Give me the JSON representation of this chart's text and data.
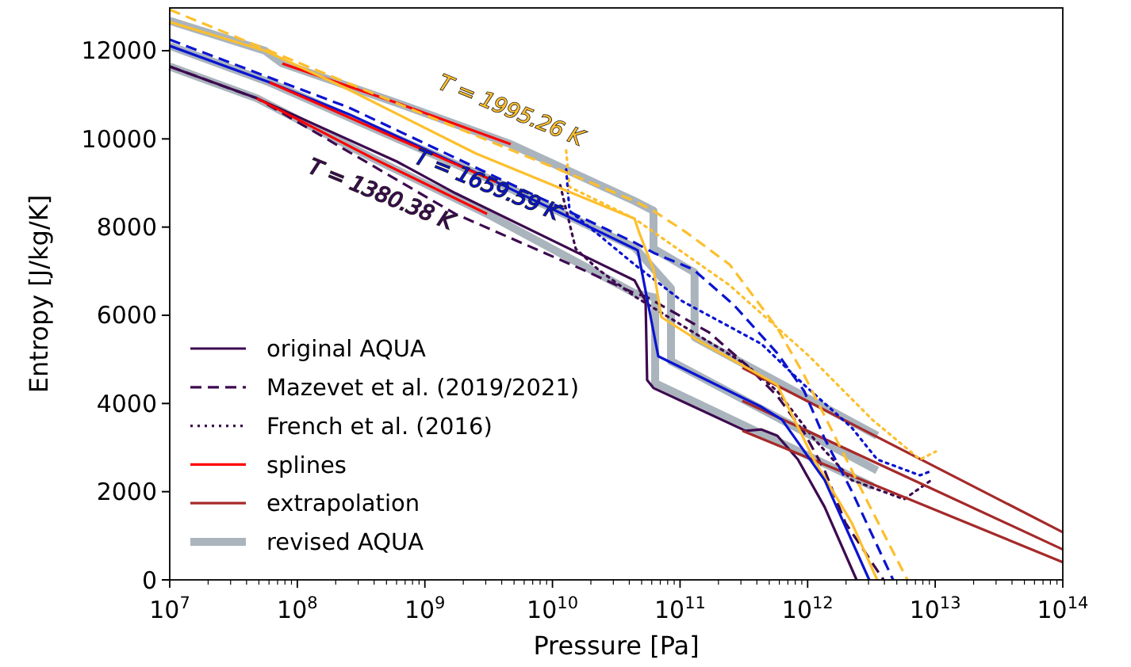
{
  "chart_data": {
    "type": "line",
    "xlabel": "Pressure [Pa]",
    "ylabel": "Entropy [J/kg/K]",
    "log": "x",
    "grid": false,
    "legend": "bottom left",
    "xlim": [
      10000000.0,
      100000000000000.0
    ],
    "ylim": [
      0,
      12970
    ],
    "xticks": [
      {
        "value": 10000000.0,
        "label": "10$^{7}$"
      },
      {
        "value": 100000000.0,
        "label": "10$^{8}$"
      },
      {
        "value": 1000000000.0,
        "label": "10$^{9}$"
      },
      {
        "value": 10000000000.0,
        "label": "10$^{10}$"
      },
      {
        "value": 100000000000.0,
        "label": "10$^{11}$"
      },
      {
        "value": 1000000000000.0,
        "label": "10$^{12}$"
      },
      {
        "value": 10000000000000.0,
        "label": "10$^{13}$"
      },
      {
        "value": 100000000000000.0,
        "label": "10$^{14}$"
      },
      {
        "value": 20000000.0,
        "label": null
      },
      {
        "value": 30000000.0,
        "label": null
      },
      {
        "value": 40000000.0,
        "label": null
      },
      {
        "value": 50000000.0,
        "label": null
      },
      {
        "value": 60000000.0,
        "label": null
      },
      {
        "value": 70000000.0,
        "label": null
      },
      {
        "value": 80000000.0,
        "label": null
      },
      {
        "value": 90000000.0,
        "label": null
      },
      {
        "value": 200000000.0,
        "label": null
      },
      {
        "value": 300000000.0,
        "label": null
      },
      {
        "value": 400000000.0,
        "label": null
      },
      {
        "value": 500000000.0,
        "label": null
      },
      {
        "value": 600000000.0,
        "label": null
      },
      {
        "value": 700000000.0,
        "label": null
      },
      {
        "value": 800000000.0,
        "label": null
      },
      {
        "value": 900000000.0,
        "label": null
      },
      {
        "value": 2000000000.0,
        "label": null
      },
      {
        "value": 3000000000.0,
        "label": null
      },
      {
        "value": 4000000000.0,
        "label": null
      },
      {
        "value": 5000000000.0,
        "label": null
      },
      {
        "value": 6000000000.0,
        "label": null
      },
      {
        "value": 7000000000.0,
        "label": null
      },
      {
        "value": 8000000000.0,
        "label": null
      },
      {
        "value": 9000000000.0,
        "label": null
      },
      {
        "value": 20000000000.0,
        "label": null
      },
      {
        "value": 30000000000.0,
        "label": null
      },
      {
        "value": 40000000000.0,
        "label": null
      },
      {
        "value": 50000000000.0,
        "label": null
      },
      {
        "value": 60000000000.0,
        "label": null
      },
      {
        "value": 70000000000.0,
        "label": null
      },
      {
        "value": 80000000000.0,
        "label": null
      },
      {
        "value": 90000000000.0,
        "label": null
      },
      {
        "value": 200000000000.0,
        "label": null
      },
      {
        "value": 300000000000.0,
        "label": null
      },
      {
        "value": 400000000000.0,
        "label": null
      },
      {
        "value": 500000000000.0,
        "label": null
      },
      {
        "value": 600000000000.0,
        "label": null
      },
      {
        "value": 700000000000.0,
        "label": null
      },
      {
        "value": 800000000000.0,
        "label": null
      },
      {
        "value": 900000000000.0,
        "label": null
      },
      {
        "value": 2000000000000.0,
        "label": null
      },
      {
        "value": 3000000000000.0,
        "label": null
      },
      {
        "value": 4000000000000.0,
        "label": null
      },
      {
        "value": 5000000000000.0,
        "label": null
      },
      {
        "value": 6000000000000.0,
        "label": null
      },
      {
        "value": 7000000000000.0,
        "label": null
      },
      {
        "value": 8000000000000.0,
        "label": null
      },
      {
        "value": 9000000000000.0,
        "label": null
      },
      {
        "value": 20000000000000.0,
        "label": null
      },
      {
        "value": 30000000000000.0,
        "label": null
      },
      {
        "value": 40000000000000.0,
        "label": null
      },
      {
        "value": 50000000000000.0,
        "label": null
      },
      {
        "value": 60000000000000.0,
        "label": null
      },
      {
        "value": 70000000000000.0,
        "label": null
      },
      {
        "value": 80000000000000.0,
        "label": null
      },
      {
        "value": 90000000000000.0,
        "label": null
      }
    ],
    "yticks": [
      0,
      2000,
      4000,
      6000,
      8000,
      10000,
      12000
    ],
    "annotations": [
      "T = 1995.26 K",
      "T = 1659.59 K",
      "T = 1380.38 K"
    ],
    "series": [
      {
        "name": "original AQUA",
        "color": "#3d0a4f",
        "line_style": "solid",
        "x": [
          10000000.0,
          48300000.0,
          600000000.0,
          1730000000.0,
          44000000000.0,
          53700000000.0,
          55200000000.0,
          61900000000.0,
          326000000000.0,
          435000000000.0,
          578000000000.0,
          839000000000.0,
          1360000000000.0,
          2420000000000.0
        ],
        "values": [
          11640,
          10920,
          9490,
          8770,
          6790,
          6320,
          4530,
          4350,
          3380,
          3410,
          3270,
          2730,
          1650,
          0
        ]
      },
      {
        "name": "Mazevet et al. (2019/2021)",
        "color": "#3d0a4f",
        "line_style": "dashed",
        "x": [
          10000000.0,
          48300000.0,
          1730000000.0,
          17100000000.0,
          44000000000.0,
          53700000000.0,
          169000000000.0,
          326000000000.0,
          578000000000.0,
          940000000000.0,
          1360000000000.0,
          1980000000000.0,
          3940000000000.0
        ],
        "values": [
          11640,
          10920,
          8300,
          7040,
          6500,
          6430,
          5610,
          4890,
          4170,
          3340,
          2480,
          1290,
          0
        ]
      },
      {
        "name": "French et al. (2016)",
        "color": "#3d0a4f",
        "line_style": "dotted",
        "x": [
          11500000000.0,
          15200000000.0,
          22800000000.0,
          44000000000.0,
          326000000000.0,
          578000000000.0,
          1120000000000.0,
          2220000000000.0,
          5710000000000.0,
          9290000000000.0
        ],
        "values": [
          8950,
          7510,
          7040,
          6430,
          4890,
          4280,
          3200,
          2260,
          1830,
          2260
        ]
      },
      {
        "name": "splines",
        "color": "#ff0000",
        "line_style": "solid",
        "x": [
          76400000.0,
          600000000.0,
          4710000000.0
        ],
        "values": [
          11710,
          10820,
          9880
        ]
      },
      {
        "name": "extrapolation",
        "color": "#a52a2a",
        "line_style": "solid",
        "x": [
          308000000000.0,
          100000000000000.0
        ],
        "values": [
          4810,
          1080
        ]
      },
      {
        "name": "revised AQUA",
        "color": "#aab4bd",
        "line_style": "solid",
        "x": [
          10000000.0,
          55700000.0,
          76400000.0,
          600000000.0,
          4710000000.0,
          44000000000.0,
          61900000000.0,
          61900000000.0,
          130000000000.0,
          130000000000.0,
          3510000000000.0
        ],
        "values": [
          12680,
          12000,
          11710,
          10820,
          9880,
          8590,
          8370,
          7510,
          6970,
          5500,
          3270
        ]
      },
      {
        "color": "#aab4bd",
        "line_style": "solid",
        "x": [
          10000000.0,
          60700000.0,
          451000000.0,
          3640000000.0,
          44000000000.0,
          84900000000.0,
          84900000000.0,
          3510000000000.0
        ],
        "values": [
          12110,
          11280,
          10170,
          9020,
          7540,
          6610,
          4960,
          2480
        ]
      },
      {
        "color": "#aab4bd",
        "line_style": "solid",
        "x": [
          10000000.0,
          48300000.0,
          392000000.0,
          3070000000.0,
          44000000000.0,
          63800000000.0,
          63800000000.0,
          3220000000000.0
        ],
        "values": [
          11640,
          10920,
          9560,
          8300,
          6500,
          6400,
          4460,
          2120
        ]
      },
      {
        "color": "#a52a2a",
        "line_style": "solid",
        "x": [
          308000000000.0,
          100000000000000.0
        ],
        "values": [
          4060,
          690
        ]
      },
      {
        "color": "#a52a2a",
        "line_style": "solid",
        "x": [
          308000000000.0,
          100000000000000.0
        ],
        "values": [
          3380,
          400
        ]
      },
      {
        "color": "#fdbf2d",
        "line_style": "dotted",
        "x": [
          12800000000.0,
          13600000000.0,
          44000000000.0,
          245000000000.0,
          1030000000000.0,
          3220000000000.0,
          7600000000000.0,
          10100000000000.0
        ],
        "values": [
          9740,
          8910,
          8190,
          6680,
          5070,
          3630,
          2730,
          2910
        ]
      },
      {
        "color": "#0a14d0",
        "line_style": "dotted",
        "x": [
          12800000000.0,
          13600000000.0,
          44000000000.0,
          104000000000.0,
          435000000000.0,
          940000000000.0,
          2220000000000.0,
          3510000000000.0,
          7600000000000.0,
          9550000000000.0
        ],
        "values": [
          9310,
          8370,
          7150,
          6320,
          5350,
          4420,
          3450,
          2730,
          2370,
          2480
        ]
      },
      {
        "color": "#fdbf2d",
        "line_style": "dashed",
        "x": [
          10000000.0,
          975000000.0,
          17100000000.0,
          44000000000.0,
          61900000000.0,
          113000000000.0,
          245000000000.0,
          578000000000.0,
          940000000000.0,
          1670000000000.0,
          2960000000000.0,
          6050000000000.0
        ],
        "values": [
          12930,
          10560,
          9090,
          8590,
          8370,
          7870,
          7150,
          5710,
          4640,
          3200,
          1760,
          0
        ]
      },
      {
        "color": "#0a14d0",
        "line_style": "dashed",
        "x": [
          10000000.0,
          55700000.0,
          254000000.0,
          44000000000.0,
          63800000000.0,
          127000000000.0,
          267000000000.0,
          578000000000.0,
          940000000000.0,
          1360000000000.0,
          2220000000000.0,
          4680000000000.0
        ],
        "values": [
          12250,
          11430,
          10710,
          7650,
          7400,
          7040,
          6220,
          5140,
          4280,
          3200,
          2010,
          0
        ]
      },
      {
        "color": "#fdbf2d",
        "line_style": "solid",
        "x": [
          10000000.0,
          55700000.0,
          233000000.0,
          2510000000.0,
          44000000000.0,
          47900000000.0,
          61900000000.0,
          71400000000.0,
          138000000000.0,
          578000000000.0,
          1120000000000.0,
          2220000000000.0,
          3510000000000.0
        ],
        "values": [
          12650,
          12000,
          11170,
          9670,
          8190,
          7870,
          7040,
          5960,
          5430,
          4420,
          2730,
          1290,
          0
        ]
      },
      {
        "color": "#0a14d0",
        "line_style": "solid",
        "x": [
          10000000.0,
          60700000.0,
          254000000.0,
          3640000000.0,
          44000000000.0,
          46600000000.0,
          67500000000.0,
          435000000000.0,
          630000000000.0,
          1360000000000.0,
          3040000000000.0
        ],
        "values": [
          12110,
          11280,
          10560,
          9020,
          7510,
          7470,
          5070,
          3920,
          3630,
          2260,
          0
        ]
      },
      {
        "color": "#ff0000",
        "line_style": "solid",
        "x": [
          60700000.0,
          451000000.0,
          3640000000.0
        ],
        "values": [
          11280,
          10170,
          9020
        ]
      },
      {
        "color": "#ff0000",
        "line_style": "solid",
        "x": [
          48300000.0,
          392000000.0,
          3070000000.0
        ],
        "values": [
          10920,
          9560,
          8300
        ]
      }
    ]
  }
}
